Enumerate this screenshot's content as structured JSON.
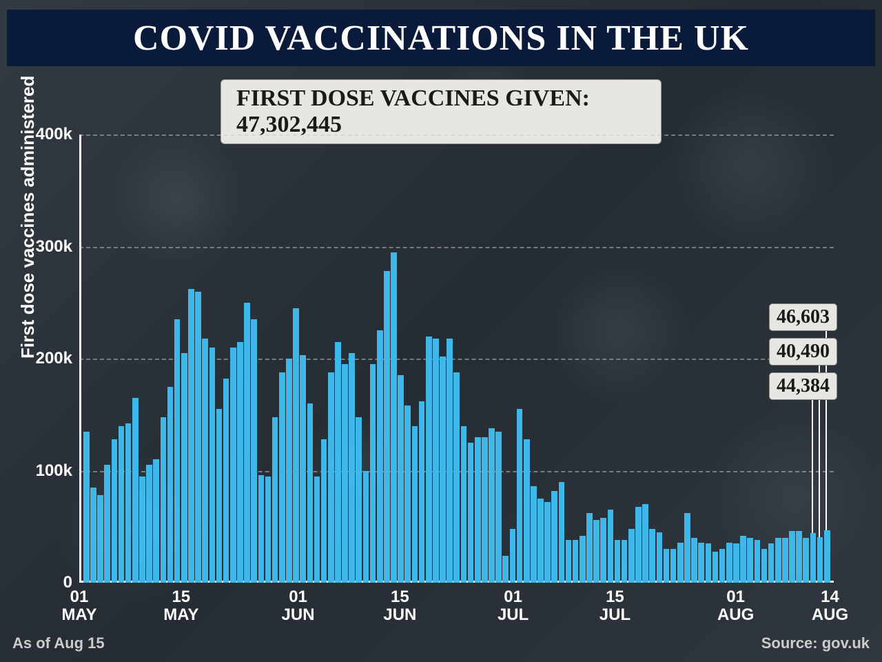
{
  "header": {
    "title": "COVID VACCINATIONS IN THE UK",
    "bg_color": "#0a1a3a",
    "text_color": "#ffffff",
    "title_fontsize": 52
  },
  "subtitle": {
    "text": "FIRST DOSE VACCINES GIVEN: 47,302,445",
    "bg_color": "#e8e6e0",
    "text_color": "#1a1a1a",
    "fontsize": 34
  },
  "chart": {
    "type": "bar",
    "ylabel": "First dose vaccines administered",
    "ylabel_fontsize": 26,
    "ylim": [
      0,
      400000
    ],
    "yticks": [
      0,
      100000,
      200000,
      300000,
      400000
    ],
    "ytick_labels": [
      "0",
      "100k",
      "200k",
      "300k",
      "400k"
    ],
    "xtick_labels": [
      {
        "pos": 0.0,
        "line1": "01",
        "line2": "MAY"
      },
      {
        "pos": 0.135,
        "line1": "15",
        "line2": "MAY"
      },
      {
        "pos": 0.29,
        "line1": "01",
        "line2": "JUN"
      },
      {
        "pos": 0.425,
        "line1": "15",
        "line2": "JUN"
      },
      {
        "pos": 0.575,
        "line1": "01",
        "line2": "JUL"
      },
      {
        "pos": 0.71,
        "line1": "15",
        "line2": "JUL"
      },
      {
        "pos": 0.87,
        "line1": "01",
        "line2": "AUG"
      },
      {
        "pos": 0.995,
        "line1": "14",
        "line2": "AUG"
      }
    ],
    "bar_color": "#3db8e8",
    "grid_color": "rgba(200,200,200,0.5)",
    "axis_color": "#ffffff",
    "tick_color": "#ffffff",
    "tick_fontsize": 24,
    "background_color": "transparent",
    "values": [
      135000,
      85000,
      78000,
      105000,
      128000,
      140000,
      142000,
      165000,
      95000,
      105000,
      110000,
      148000,
      175000,
      235000,
      205000,
      262000,
      260000,
      218000,
      210000,
      155000,
      182000,
      210000,
      215000,
      250000,
      235000,
      96000,
      95000,
      148000,
      188000,
      200000,
      245000,
      203000,
      160000,
      95000,
      128000,
      188000,
      215000,
      195000,
      205000,
      148000,
      100000,
      195000,
      225000,
      278000,
      295000,
      185000,
      158000,
      140000,
      162000,
      220000,
      218000,
      202000,
      218000,
      188000,
      140000,
      125000,
      130000,
      130000,
      138000,
      135000,
      24000,
      48000,
      155000,
      128000,
      86000,
      75000,
      72000,
      82000,
      90000,
      38000,
      38000,
      42000,
      62000,
      56000,
      58000,
      65000,
      38000,
      38000,
      48000,
      68000,
      70000,
      48000,
      45000,
      30000,
      30000,
      36000,
      62000,
      40000,
      36000,
      35000,
      28000,
      30000,
      36000,
      35000,
      42000,
      40000,
      38000,
      30000,
      35000,
      40000,
      40000,
      46000,
      46000,
      40000,
      44384,
      40490,
      46603
    ],
    "callouts": [
      {
        "label": "46,603",
        "bar_index": 106,
        "y_offset": 0
      },
      {
        "label": "40,490",
        "bar_index": 105,
        "y_offset": 50
      },
      {
        "label": "44,384",
        "bar_index": 104,
        "y_offset": 100
      }
    ]
  },
  "footer": {
    "left": "As of Aug 15",
    "right": "Source: gov.uk",
    "color": "#cccccc",
    "fontsize": 22
  }
}
